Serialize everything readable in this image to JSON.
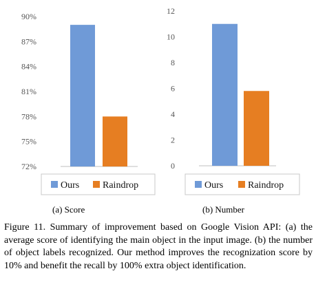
{
  "colors": {
    "ours": "#6f9ad7",
    "raindrop": "#e67e22",
    "axis": "#bfbfbf",
    "legend_border": "#c8c8c8"
  },
  "chart_data": [
    {
      "type": "bar",
      "categories": [
        "Ours",
        "Raindrop"
      ],
      "values": [
        89,
        78
      ],
      "value_unit": "%",
      "ylim": [
        72,
        90
      ],
      "yticks": [
        "72%",
        "75%",
        "78%",
        "81%",
        "84%",
        "87%",
        "90%"
      ],
      "legend": [
        "Ours",
        "Raindrop"
      ],
      "legend_position": "bottom",
      "title": "",
      "xlabel": "",
      "ylabel": ""
    },
    {
      "type": "bar",
      "categories": [
        "Ours",
        "Raindrop"
      ],
      "values": [
        11,
        5.8
      ],
      "ylim": [
        0,
        12
      ],
      "yticks": [
        "0",
        "2",
        "4",
        "6",
        "8",
        "10",
        "12"
      ],
      "legend": [
        "Ours",
        "Raindrop"
      ],
      "legend_position": "bottom",
      "title": "",
      "xlabel": "",
      "ylabel": ""
    }
  ],
  "subcaptions": {
    "a": "(a)  Score",
    "b": "(b)  Number"
  },
  "caption": "Figure 11. Summary of improvement based on Google Vision API: (a) the average score of identifying the main object in the input image. (b) the number of object labels recognized. Our method improves the recognization score by 10% and benefit the recall by 100% extra object identification."
}
